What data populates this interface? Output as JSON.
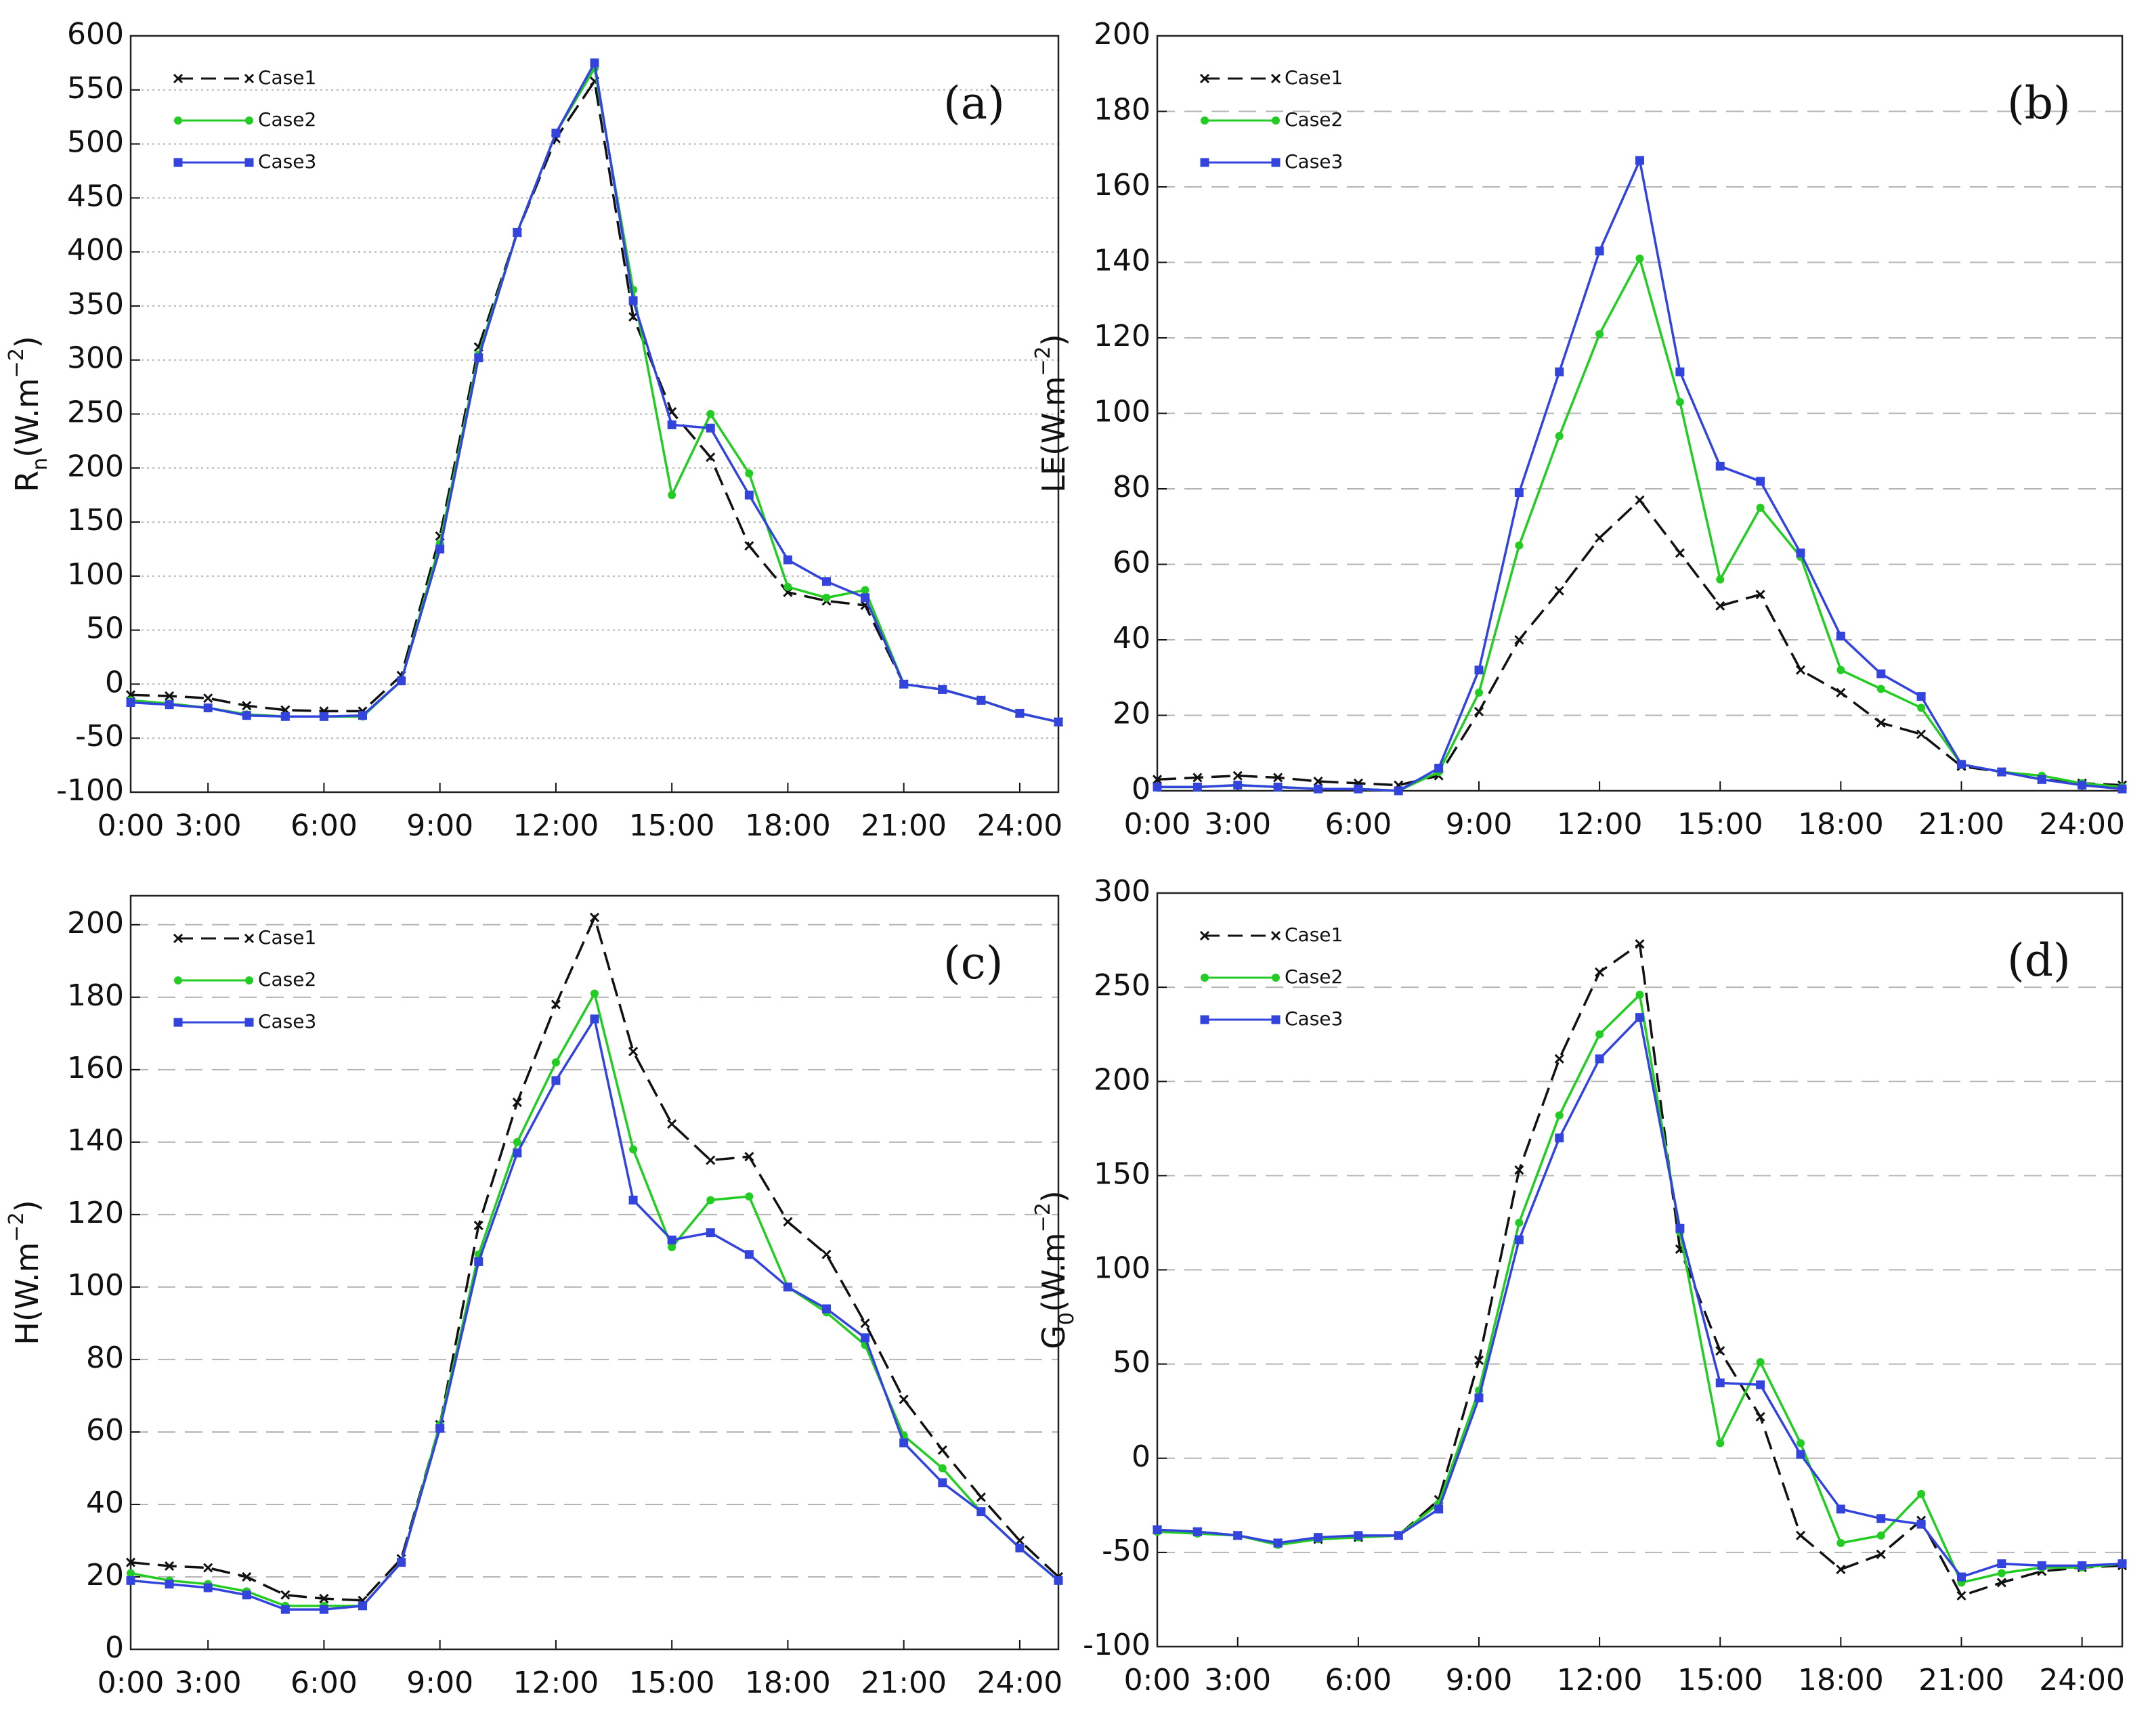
{
  "chart_data": [
    {
      "type": "line",
      "panel": "(a)",
      "ylabel": {
        "base": "R",
        "sub": "n",
        "unit": "(W.m",
        "exp": "−2",
        "close": ")"
      },
      "x": [
        1,
        2,
        3,
        4,
        5,
        6,
        7,
        8,
        9,
        10,
        11,
        12,
        13,
        14,
        15,
        16,
        17,
        18,
        19,
        20,
        21,
        22,
        23,
        24,
        25
      ],
      "xlim": [
        1,
        25
      ],
      "xticks": [
        {
          "value": 0,
          "label": "0:00"
        },
        {
          "value": 3,
          "label": "3:00"
        },
        {
          "value": 6,
          "label": "6:00"
        },
        {
          "value": 9,
          "label": "9:00"
        },
        {
          "value": 12,
          "label": "12:00"
        },
        {
          "value": 15,
          "label": "15:00"
        },
        {
          "value": 18,
          "label": "18:00"
        },
        {
          "value": 21,
          "label": "21:00"
        },
        {
          "value": 24,
          "label": "24:00"
        }
      ],
      "ylim": [
        -100,
        600
      ],
      "yticks": [
        -100,
        -50,
        0,
        50,
        100,
        150,
        200,
        250,
        300,
        350,
        400,
        450,
        500,
        550,
        600
      ],
      "grid": "dotted",
      "series": [
        {
          "name": "Case1",
          "color": "#111111",
          "linestyle": "dashed",
          "marker": "x",
          "values": [
            -10,
            -11,
            -13,
            -20,
            -24,
            -25,
            -25,
            8,
            137,
            312,
            418,
            505,
            558,
            340,
            252,
            210,
            128,
            85,
            77,
            73,
            0,
            -5,
            -15,
            -27,
            -35
          ]
        },
        {
          "name": "Case2",
          "color": "#22cc22",
          "linestyle": "solid",
          "marker": "circle",
          "values": [
            -15,
            -18,
            -22,
            -28,
            -30,
            -30,
            -30,
            3,
            130,
            305,
            418,
            510,
            570,
            365,
            175,
            250,
            195,
            90,
            80,
            87,
            0,
            -5,
            -15,
            -27,
            -35
          ]
        },
        {
          "name": "Case3",
          "color": "#3344dd",
          "linestyle": "solid",
          "marker": "square",
          "values": [
            -17,
            -19,
            -22,
            -29,
            -30,
            -30,
            -29,
            3,
            125,
            302,
            418,
            510,
            575,
            355,
            240,
            237,
            175,
            115,
            95,
            80,
            0,
            -5,
            -15,
            -27,
            -35
          ]
        }
      ]
    },
    {
      "type": "line",
      "panel": "(b)",
      "ylabel": {
        "base": "LE",
        "unit": "(W.m",
        "exp": "−2",
        "close": ")"
      },
      "x": [
        1,
        2,
        3,
        4,
        5,
        6,
        7,
        8,
        9,
        10,
        11,
        12,
        13,
        14,
        15,
        16,
        17,
        18,
        19,
        20,
        21,
        22,
        23,
        24,
        25
      ],
      "xlim": [
        1,
        25
      ],
      "xticks": [
        {
          "value": 0,
          "label": "0:00"
        },
        {
          "value": 3,
          "label": "3:00"
        },
        {
          "value": 6,
          "label": "6:00"
        },
        {
          "value": 9,
          "label": "9:00"
        },
        {
          "value": 12,
          "label": "12:00"
        },
        {
          "value": 15,
          "label": "15:00"
        },
        {
          "value": 18,
          "label": "18:00"
        },
        {
          "value": 21,
          "label": "21:00"
        },
        {
          "value": 24,
          "label": "24:00"
        }
      ],
      "ylim": [
        0,
        200
      ],
      "yticks": [
        0,
        20,
        40,
        60,
        80,
        100,
        120,
        140,
        160,
        180,
        200
      ],
      "grid": "dashed",
      "series": [
        {
          "name": "Case1",
          "color": "#111111",
          "linestyle": "dashed",
          "marker": "x",
          "values": [
            3,
            3.5,
            4,
            3.5,
            2.5,
            2,
            1.5,
            4,
            21,
            40,
            53,
            67,
            77,
            63,
            49,
            52,
            32,
            26,
            18,
            15,
            6.5,
            5,
            3,
            2,
            1.5
          ]
        },
        {
          "name": "Case2",
          "color": "#22cc22",
          "linestyle": "solid",
          "marker": "circle",
          "values": [
            1,
            1,
            1.5,
            1,
            0.5,
            0.5,
            0,
            5,
            26,
            65,
            94,
            121,
            141,
            103,
            56,
            75,
            62,
            32,
            27,
            22,
            7,
            5,
            4,
            2,
            1
          ]
        },
        {
          "name": "Case3",
          "color": "#3344dd",
          "linestyle": "solid",
          "marker": "square",
          "values": [
            1,
            1,
            1.5,
            1,
            0.5,
            0.5,
            0,
            6,
            32,
            79,
            111,
            143,
            167,
            111,
            86,
            82,
            63,
            41,
            31,
            25,
            7,
            5,
            3,
            1.5,
            0.5
          ]
        }
      ]
    },
    {
      "type": "line",
      "panel": "(c)",
      "ylabel": {
        "base": "H",
        "unit": "(W.m",
        "exp": "−2",
        "close": ")"
      },
      "x": [
        1,
        2,
        3,
        4,
        5,
        6,
        7,
        8,
        9,
        10,
        11,
        12,
        13,
        14,
        15,
        16,
        17,
        18,
        19,
        20,
        21,
        22,
        23,
        24,
        25
      ],
      "xlim": [
        1,
        25
      ],
      "xticks": [
        {
          "value": 0,
          "label": "0:00"
        },
        {
          "value": 3,
          "label": "3:00"
        },
        {
          "value": 6,
          "label": "6:00"
        },
        {
          "value": 9,
          "label": "9:00"
        },
        {
          "value": 12,
          "label": "12:00"
        },
        {
          "value": 15,
          "label": "15:00"
        },
        {
          "value": 18,
          "label": "18:00"
        },
        {
          "value": 21,
          "label": "21:00"
        },
        {
          "value": 24,
          "label": "24:00"
        }
      ],
      "ylim": [
        0,
        208
      ],
      "yticks": [
        0,
        20,
        40,
        60,
        80,
        100,
        120,
        140,
        160,
        180,
        200
      ],
      "grid": "dashed",
      "series": [
        {
          "name": "Case1",
          "color": "#111111",
          "linestyle": "dashed",
          "marker": "x",
          "values": [
            24,
            23,
            22.5,
            20,
            15,
            14,
            13.5,
            25,
            62,
            117,
            151,
            178,
            202,
            165,
            145,
            135,
            136,
            118,
            109,
            90,
            69,
            55,
            42,
            30,
            20
          ]
        },
        {
          "name": "Case2",
          "color": "#22cc22",
          "linestyle": "solid",
          "marker": "circle",
          "values": [
            21,
            19,
            18,
            16,
            12,
            12,
            12,
            24,
            62,
            109,
            140,
            162,
            181,
            138,
            111,
            124,
            125,
            100,
            93,
            84,
            59,
            50,
            38,
            28,
            19
          ]
        },
        {
          "name": "Case3",
          "color": "#3344dd",
          "linestyle": "solid",
          "marker": "square",
          "values": [
            19,
            18,
            17,
            15,
            11,
            11,
            12,
            24,
            61,
            107,
            137,
            157,
            174,
            124,
            113,
            115,
            109,
            100,
            94,
            86,
            57,
            46,
            38,
            28,
            19
          ]
        }
      ]
    },
    {
      "type": "line",
      "panel": "(d)",
      "ylabel": {
        "base": "G",
        "sub": "0",
        "unit": "(W.m",
        "exp": "−2",
        "close": ")"
      },
      "x": [
        1,
        2,
        3,
        4,
        5,
        6,
        7,
        8,
        9,
        10,
        11,
        12,
        13,
        14,
        15,
        16,
        17,
        18,
        19,
        20,
        21,
        22,
        23,
        24,
        25
      ],
      "xlim": [
        1,
        25
      ],
      "xticks": [
        {
          "value": 0,
          "label": "0:00"
        },
        {
          "value": 3,
          "label": "3:00"
        },
        {
          "value": 6,
          "label": "6:00"
        },
        {
          "value": 9,
          "label": "9:00"
        },
        {
          "value": 12,
          "label": "12:00"
        },
        {
          "value": 15,
          "label": "15:00"
        },
        {
          "value": 18,
          "label": "18:00"
        },
        {
          "value": 21,
          "label": "21:00"
        },
        {
          "value": 24,
          "label": "24:00"
        }
      ],
      "ylim": [
        -100,
        300
      ],
      "yticks": [
        -100,
        -50,
        0,
        50,
        100,
        150,
        200,
        250,
        300
      ],
      "grid": "dashed",
      "series": [
        {
          "name": "Case1",
          "color": "#111111",
          "linestyle": "dashed",
          "marker": "x",
          "values": [
            -38,
            -39,
            -41,
            -45,
            -43,
            -42,
            -41,
            -22,
            52,
            153,
            212,
            258,
            273,
            111,
            57,
            22,
            -41,
            -59,
            -51,
            -33,
            -73,
            -66,
            -60,
            -58,
            -57
          ]
        },
        {
          "name": "Case2",
          "color": "#22cc22",
          "linestyle": "solid",
          "marker": "circle",
          "values": [
            -39,
            -40,
            -41,
            -46,
            -43,
            -42,
            -41,
            -24,
            36,
            125,
            182,
            225,
            246,
            120,
            8,
            51,
            8,
            -45,
            -41,
            -19,
            -66,
            -61,
            -58,
            -58,
            -56
          ]
        },
        {
          "name": "Case3",
          "color": "#3344dd",
          "linestyle": "solid",
          "marker": "square",
          "values": [
            -38,
            -39,
            -41,
            -45,
            -42,
            -41,
            -41,
            -27,
            32,
            116,
            170,
            212,
            234,
            122,
            40,
            39,
            2,
            -27,
            -32,
            -35,
            -63,
            -56,
            -57,
            -57,
            -56
          ]
        }
      ]
    }
  ]
}
